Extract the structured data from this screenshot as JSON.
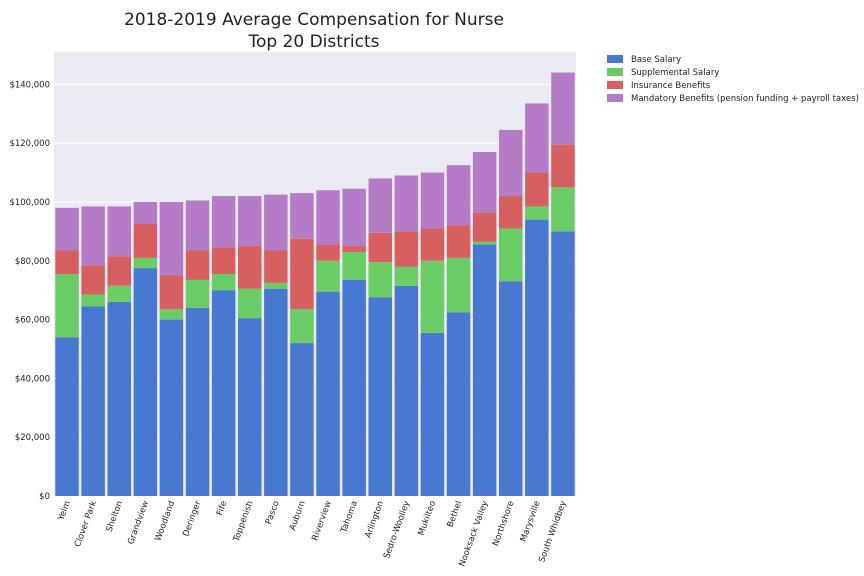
{
  "chart_data": {
    "type": "bar",
    "stacked": true,
    "title": "2018-2019 Average Compensation for Nurse",
    "subtitle": "Top 20 Districts",
    "xlabel": "",
    "ylabel": "",
    "ylim": [
      0,
      151000
    ],
    "yticks": [
      0,
      20000,
      40000,
      60000,
      80000,
      100000,
      120000,
      140000
    ],
    "ytick_labels": [
      "$0",
      "$20,000",
      "$40,000",
      "$60,000",
      "$80,000",
      "$100,000",
      "$120,000",
      "$140,000"
    ],
    "grid": true,
    "legend_position": "outside-top-right",
    "categories": [
      "Yelm",
      "Clover Park",
      "Shelton",
      "Grandview",
      "Woodland",
      "Deringer",
      "Fife",
      "Toppenish",
      "Pasco",
      "Auburn",
      "Riverview",
      "Tahoma",
      "Arlington",
      "Sedro-Woolley",
      "Mukilteo",
      "Bethel",
      "Nooksack Valley",
      "Northshore",
      "Marysville",
      "South Whidbey"
    ],
    "series": [
      {
        "name": "Base Salary",
        "color": "#4878cf",
        "values": [
          54000,
          64500,
          66000,
          77500,
          60000,
          64000,
          70000,
          60500,
          70500,
          52000,
          69500,
          73500,
          67500,
          71500,
          55500,
          62500,
          85500,
          73000,
          94000,
          90000
        ]
      },
      {
        "name": "Supplemental Salary",
        "color": "#6acc65",
        "values": [
          21500,
          4000,
          5500,
          3500,
          3500,
          9500,
          5500,
          10000,
          2000,
          11500,
          10500,
          9500,
          12000,
          6500,
          24500,
          18500,
          1000,
          18000,
          4500,
          15000
        ]
      },
      {
        "name": "Insurance Benefits",
        "color": "#d65f5f",
        "values": [
          8000,
          10000,
          10000,
          11500,
          11500,
          10000,
          9000,
          14500,
          11000,
          24000,
          5500,
          2000,
          10000,
          12000,
          11000,
          11000,
          10000,
          11000,
          11500,
          14500
        ]
      },
      {
        "name": "Mandatory Benefits (pension funding + payroll taxes)",
        "color": "#b47cc7",
        "values": [
          14500,
          20000,
          17000,
          7500,
          25000,
          17000,
          17500,
          17000,
          19000,
          15500,
          18500,
          19500,
          18500,
          19000,
          19000,
          20500,
          20500,
          22500,
          23500,
          24500
        ]
      }
    ]
  },
  "style": {
    "plot_background": "#eaeaf2",
    "grid_color": "#ffffff",
    "text_color": "#222222"
  }
}
